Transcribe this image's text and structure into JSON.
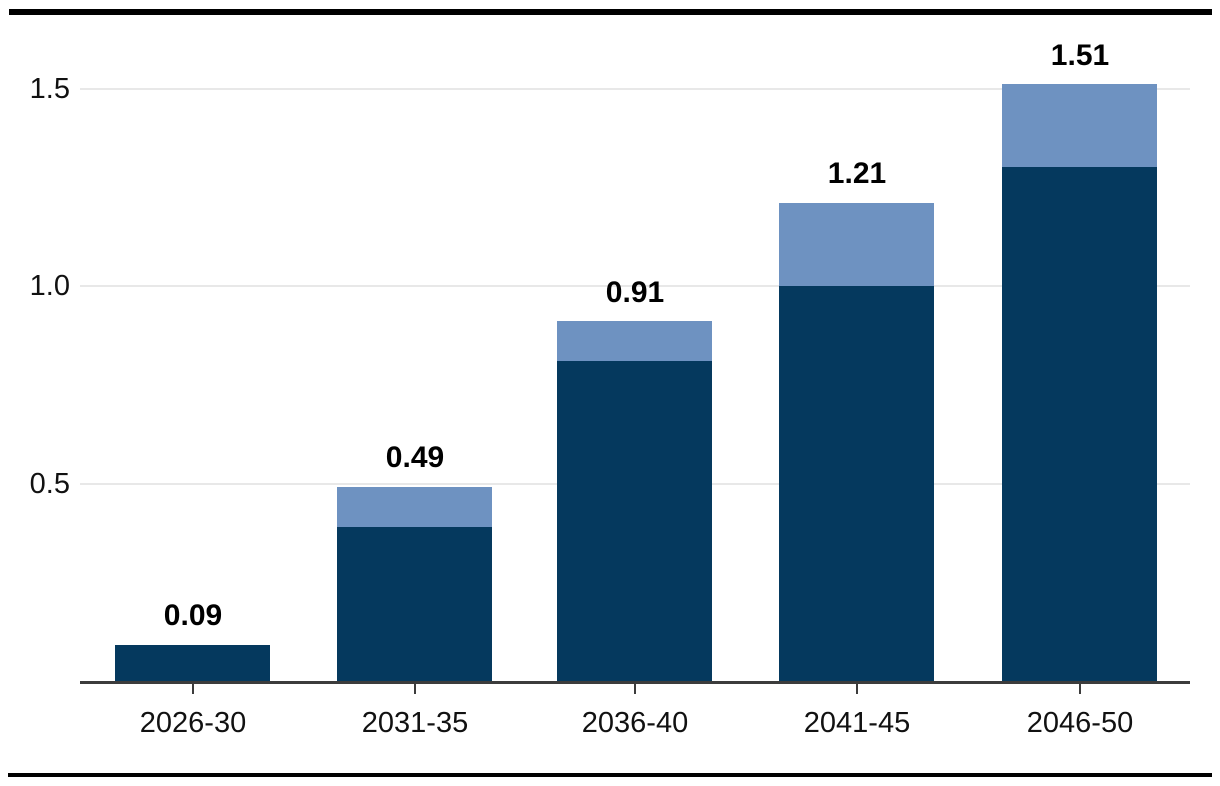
{
  "chart_data": {
    "type": "bar",
    "stacked": true,
    "title": "",
    "xlabel": "",
    "ylabel": "",
    "legend": "none",
    "grid": "horizontal",
    "categories": [
      "2026-30",
      "2031-35",
      "2036-40",
      "2041-45",
      "2046-50"
    ],
    "series": [
      {
        "name": "lower-dark-segment",
        "color": "#05395E",
        "values": [
          0.09,
          0.39,
          0.81,
          1.0,
          1.3
        ]
      },
      {
        "name": "upper-light-segment",
        "color": "#6E92C1",
        "values": [
          0.0,
          0.1,
          0.1,
          0.21,
          0.21
        ]
      }
    ],
    "totals": [
      0.09,
      0.49,
      0.91,
      1.21,
      1.51
    ],
    "total_labels": [
      "0.09",
      "0.49",
      "0.91",
      "1.21",
      "1.51"
    ],
    "y_axis": {
      "range": [
        0,
        1.6
      ],
      "ticks": [
        0.5,
        1.0,
        1.5
      ],
      "tick_labels": [
        "0.5",
        "1.0",
        "1.5"
      ]
    }
  },
  "style": {
    "background": "#ffffff",
    "frame_rule_color": "#000000",
    "axis_color": "#3c3c3c",
    "grid_color": "#e8e8e8",
    "tick_label_color": "#111111",
    "value_label_color": "#000000"
  }
}
